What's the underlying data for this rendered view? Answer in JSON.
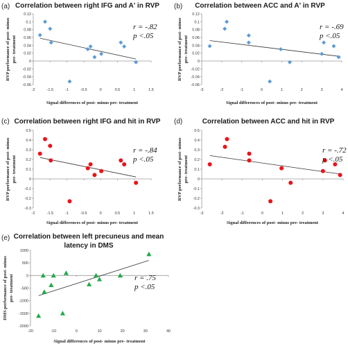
{
  "chart_data": [
    {
      "panel_label": "(a)",
      "type": "scatter",
      "title": "Correlation between right IFG and A' in RVP",
      "xlabel": "Signal differences of post- minus pre- treatment",
      "ylabel": [
        "RVP performance of post- minus",
        "pre- treatment"
      ],
      "xlim": [
        -2,
        1.5
      ],
      "ylim": [
        -0.06,
        0.12
      ],
      "xticks": [
        "-2",
        "-1.5",
        "-1",
        "-0.5",
        "0",
        "0.5",
        "1",
        "1.5"
      ],
      "yticks": [
        "-0.06",
        "-0.04",
        "-0.02",
        "0",
        "0.02",
        "0.04",
        "0.06",
        "0.08",
        "0.1",
        "0.12"
      ],
      "marker": "diamond",
      "marker_color": "#5b9bd5",
      "points": [
        [
          -1.8,
          0.066
        ],
        [
          -1.65,
          0.1
        ],
        [
          -1.5,
          0.082
        ],
        [
          -1.47,
          0.047
        ],
        [
          -0.92,
          -0.052
        ],
        [
          -0.38,
          0.03
        ],
        [
          -0.3,
          0.037
        ],
        [
          -0.18,
          0.01
        ],
        [
          0.02,
          0.018
        ],
        [
          0.6,
          0.047
        ],
        [
          0.7,
          0.037
        ],
        [
          1.05,
          -0.003
        ]
      ],
      "fit_line": [
        [
          -1.8,
          0.058
        ],
        [
          1.05,
          0.005
        ]
      ],
      "r_text": "r = -.82",
      "p_text": "p <.05"
    },
    {
      "panel_label": "(b)",
      "type": "scatter",
      "title": "Correlation between ACC and A' in RVP",
      "xlabel": "Signal differences of post- minus pre- treatment",
      "ylabel": [
        "RVP performance of post- minus",
        "pre- treatment"
      ],
      "xlim": [
        -3,
        4
      ],
      "ylim": [
        -0.06,
        0.12
      ],
      "xticks": [
        "-3",
        "-2",
        "-1",
        "0",
        "1",
        "2",
        "3",
        "4"
      ],
      "yticks": [
        "-0.06",
        "-0.04",
        "-0.02",
        "0",
        "0.02",
        "0.04",
        "0.06",
        "0.08",
        "0.1",
        "0.12"
      ],
      "marker": "diamond",
      "marker_color": "#5b9bd5",
      "points": [
        [
          -2.6,
          0.038
        ],
        [
          -1.85,
          0.082
        ],
        [
          -1.75,
          0.1
        ],
        [
          -0.65,
          0.065
        ],
        [
          -0.65,
          0.047
        ],
        [
          0.4,
          -0.052
        ],
        [
          0.95,
          0.03
        ],
        [
          1.4,
          -0.003
        ],
        [
          3.0,
          0.018
        ],
        [
          3.1,
          0.047
        ],
        [
          3.6,
          0.038
        ],
        [
          3.85,
          0.01
        ]
      ],
      "fit_line": [
        [
          -2.6,
          0.052
        ],
        [
          3.85,
          0.012
        ]
      ],
      "r_text": "r = -.69",
      "p_text": "p <.05"
    },
    {
      "panel_label": "(c)",
      "type": "scatter",
      "title": "Correlation between right IFG and hit in RVP",
      "xlabel": "Signal differences of post- minus pre- treatment",
      "ylabel": [
        "RVP performance of post- minus",
        "pre- treatment"
      ],
      "xlim": [
        -2,
        1.5
      ],
      "ylim": [
        -0.3,
        0.5
      ],
      "xticks": [
        "-2",
        "-1.5",
        "-1",
        "-0.5",
        "0",
        "0.5",
        "1",
        "1.5"
      ],
      "yticks": [
        "-0.3",
        "-0.2",
        "-0.1",
        "0",
        "0.1",
        "0.2",
        "0.3",
        "0.4",
        "0.5"
      ],
      "marker": "circle",
      "marker_color": "#e8141b",
      "points": [
        [
          -1.8,
          0.26
        ],
        [
          -1.65,
          0.41
        ],
        [
          -1.5,
          0.34
        ],
        [
          -1.48,
          0.19
        ],
        [
          -0.92,
          -0.23
        ],
        [
          -0.38,
          0.11
        ],
        [
          -0.3,
          0.15
        ],
        [
          -0.18,
          0.04
        ],
        [
          0.02,
          0.08
        ],
        [
          0.6,
          0.19
        ],
        [
          0.7,
          0.15
        ],
        [
          1.05,
          -0.04
        ]
      ],
      "fit_line": [
        [
          -1.8,
          0.22
        ],
        [
          1.05,
          0.02
        ]
      ],
      "r_text": "r = -.84",
      "p_text": "p <.05"
    },
    {
      "panel_label": "(d)",
      "type": "scatter",
      "title": "Correlation between ACC and hit in RVP",
      "xlabel": "Signal differences of post- minus pre- treatment",
      "ylabel": [
        "RVP performance of post- minus",
        "pre- treatment"
      ],
      "xlim": [
        -3,
        4
      ],
      "ylim": [
        -0.3,
        0.5
      ],
      "xticks": [
        "-3",
        "-2",
        "-1",
        "0",
        "1",
        "2",
        "3",
        "4"
      ],
      "yticks": [
        "-0.3",
        "-0.2",
        "-0.1",
        "0",
        "0.1",
        "0.2",
        "0.3",
        "0.4",
        "0.5"
      ],
      "marker": "circle",
      "marker_color": "#e8141b",
      "points": [
        [
          -2.6,
          0.15
        ],
        [
          -1.85,
          0.33
        ],
        [
          -1.75,
          0.41
        ],
        [
          -0.65,
          0.26
        ],
        [
          -0.65,
          0.19
        ],
        [
          0.4,
          -0.23
        ],
        [
          0.95,
          0.11
        ],
        [
          1.4,
          -0.04
        ],
        [
          3.0,
          0.08
        ],
        [
          3.1,
          0.19
        ],
        [
          3.6,
          0.15
        ],
        [
          3.85,
          0.04
        ]
      ],
      "fit_line": [
        [
          -2.6,
          0.24
        ],
        [
          3.85,
          0.05
        ]
      ],
      "r_text": "r = -.72",
      "p_text": "p <.05"
    },
    {
      "panel_label": "(e)",
      "type": "scatter",
      "title": [
        "Correlation between left precuneus and mean",
        "latency in DMS"
      ],
      "xlabel": "Signal differences of post- minus pre- treatment",
      "ylabel": [
        "DMS performance of post- minus",
        "pre- treatment"
      ],
      "xlim": [
        -20,
        40
      ],
      "ylim": [
        -2000,
        1000
      ],
      "xticks": [
        "-20",
        "-10",
        "0",
        "10",
        "20",
        "30",
        "40"
      ],
      "yticks": [
        "-2000",
        "-1500",
        "-1000",
        "-500",
        "0",
        "500",
        "1000"
      ],
      "marker": "triangle",
      "marker_color": "#22a94a",
      "points": [
        [
          -16.5,
          -1600
        ],
        [
          -14.5,
          0
        ],
        [
          -14,
          -650
        ],
        [
          -11,
          -380
        ],
        [
          -10,
          0
        ],
        [
          -6,
          -1500
        ],
        [
          -4.5,
          100
        ],
        [
          5.5,
          -350
        ],
        [
          8.5,
          0
        ],
        [
          10,
          -150
        ],
        [
          19,
          0
        ],
        [
          31.5,
          850
        ]
      ],
      "fit_line": [
        [
          -16.5,
          -800
        ],
        [
          31.5,
          600
        ]
      ],
      "r_text": "r = .75",
      "p_text": "p <.05"
    }
  ]
}
